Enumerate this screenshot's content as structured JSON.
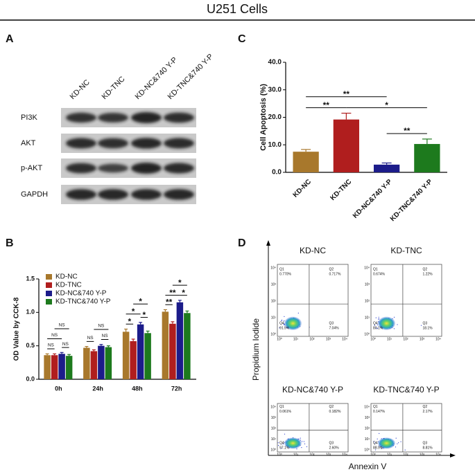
{
  "title": "U251 Cells",
  "panel_labels": [
    "A",
    "B",
    "C",
    "D"
  ],
  "western_blot": {
    "lanes": [
      "KD-NC",
      "KD-TNC",
      "KD-NC&740 Y-P",
      "KD-TNC&740 Y-P"
    ],
    "proteins": [
      "PI3K",
      "AKT",
      "p-AKT",
      "GAPDH"
    ]
  },
  "chart_data": [
    {
      "type": "grouped_bar",
      "y_label": "OD Value by CCK-8",
      "categories": [
        "0h",
        "24h",
        "48h",
        "72h"
      ],
      "series": [
        {
          "name": "KD-NC",
          "color": "#a8782c",
          "values": [
            0.36,
            0.47,
            0.71,
            1.01
          ],
          "errors": [
            0.02,
            0.02,
            0.04,
            0.03
          ]
        },
        {
          "name": "KD-TNC",
          "color": "#b01e1e",
          "values": [
            0.36,
            0.42,
            0.57,
            0.83
          ],
          "errors": [
            0.02,
            0.02,
            0.03,
            0.03
          ]
        },
        {
          "name": "KD-NC&740 Y-P",
          "color": "#1c1c8a",
          "values": [
            0.38,
            0.5,
            0.82,
            1.15
          ],
          "errors": [
            0.02,
            0.02,
            0.03,
            0.03
          ]
        },
        {
          "name": "KD-TNC&740 Y-P",
          "color": "#1d7a1d",
          "values": [
            0.35,
            0.48,
            0.69,
            0.99
          ],
          "errors": [
            0.02,
            0.02,
            0.03,
            0.03
          ]
        }
      ],
      "ylim": [
        0,
        1.5
      ],
      "yticks": [
        {
          "value": 0,
          "label": "0.0"
        },
        {
          "value": 0.5,
          "label": "0.5"
        },
        {
          "value": 1,
          "label": "1.0"
        },
        {
          "value": 1.5,
          "label": "1.5"
        }
      ],
      "legend": "upper left",
      "annotations": [
        {
          "category": "0h",
          "pair": [
            0,
            1
          ],
          "text": "NS"
        },
        {
          "category": "0h",
          "pair": [
            2,
            3
          ],
          "text": "NS"
        },
        {
          "category": "0h",
          "pair": [
            0,
            2
          ],
          "text": "NS"
        },
        {
          "category": "0h",
          "pair": [
            1,
            3
          ],
          "text": "NS"
        },
        {
          "category": "24h",
          "pair": [
            0,
            1
          ],
          "text": "NS"
        },
        {
          "category": "24h",
          "pair": [
            2,
            3
          ],
          "text": "NS"
        },
        {
          "category": "24h",
          "pair": [
            1,
            3
          ],
          "text": "NS"
        },
        {
          "category": "48h",
          "pair": [
            0,
            1
          ],
          "text": "*"
        },
        {
          "category": "48h",
          "pair": [
            2,
            3
          ],
          "text": "*"
        },
        {
          "category": "48h",
          "pair": [
            0,
            2
          ],
          "text": "*"
        },
        {
          "category": "48h",
          "pair": [
            1,
            3
          ],
          "text": "*"
        },
        {
          "category": "72h",
          "pair": [
            0,
            1
          ],
          "text": "**"
        },
        {
          "category": "72h",
          "pair": [
            2,
            3
          ],
          "text": "*"
        },
        {
          "category": "72h",
          "pair": [
            0,
            2
          ],
          "text": "**"
        },
        {
          "category": "72h",
          "pair": [
            1,
            3
          ],
          "text": "*"
        }
      ]
    },
    {
      "type": "bar",
      "y_label": "Cell Apoptosis (%)",
      "categories": [
        "KD-NC",
        "KD-TNC",
        "KD-NC&740 Y-P",
        "KD-TNC&740 Y-P"
      ],
      "values": [
        7.5,
        19.2,
        2.8,
        10.3
      ],
      "errors": [
        0.8,
        2.3,
        0.6,
        1.8
      ],
      "colors": [
        "#a8782c",
        "#b01e1e",
        "#1c1c8a",
        "#1d7a1d"
      ],
      "ylim": [
        0,
        40
      ],
      "yticks": [
        {
          "value": 0,
          "label": "0.0"
        },
        {
          "value": 10,
          "label": "10.0"
        },
        {
          "value": 20,
          "label": "20.0"
        },
        {
          "value": 30,
          "label": "30.0"
        },
        {
          "value": 40,
          "label": "40.0"
        }
      ],
      "annotations": [
        {
          "pair": [
            2,
            3
          ],
          "text": "**"
        },
        {
          "pair": [
            0,
            1
          ],
          "text": "**"
        },
        {
          "pair": [
            1,
            3
          ],
          "text": "*"
        },
        {
          "pair": [
            0,
            2
          ],
          "text": "**"
        }
      ]
    }
  ],
  "flow_cytometry": {
    "x_label": "Annexin V",
    "y_label": "Propidium Iodide",
    "axis_ticks": [
      "10⁰",
      "10¹",
      "10²",
      "10³",
      "10⁴"
    ],
    "plots": [
      {
        "title": "KD-NC",
        "quadrants": [
          {
            "name": "Q1",
            "percent": "0.770%"
          },
          {
            "name": "Q2",
            "percent": "0.717%"
          },
          {
            "name": "Q3",
            "percent": "7.04%"
          },
          {
            "name": "Q4",
            "percent": "91.5%"
          }
        ]
      },
      {
        "title": "KD-TNC",
        "quadrants": [
          {
            "name": "Q1",
            "percent": "0.674%"
          },
          {
            "name": "Q2",
            "percent": "1.22%"
          },
          {
            "name": "Q3",
            "percent": "18.1%"
          },
          {
            "name": "Q4",
            "percent": "80.1%"
          }
        ]
      },
      {
        "title": "KD-NC&740 Y-P",
        "quadrants": [
          {
            "name": "Q1",
            "percent": "0.061%"
          },
          {
            "name": "Q2",
            "percent": "0.182%"
          },
          {
            "name": "Q3",
            "percent": "2.60%"
          },
          {
            "name": "Q4",
            "percent": "97.1%"
          }
        ]
      },
      {
        "title": "KD-TNC&740 Y-P",
        "quadrants": [
          {
            "name": "Q1",
            "percent": "0.147%"
          },
          {
            "name": "Q2",
            "percent": "2.17%"
          },
          {
            "name": "Q3",
            "percent": "8.81%"
          },
          {
            "name": "Q4",
            "percent": "88.9%"
          }
        ]
      }
    ]
  }
}
